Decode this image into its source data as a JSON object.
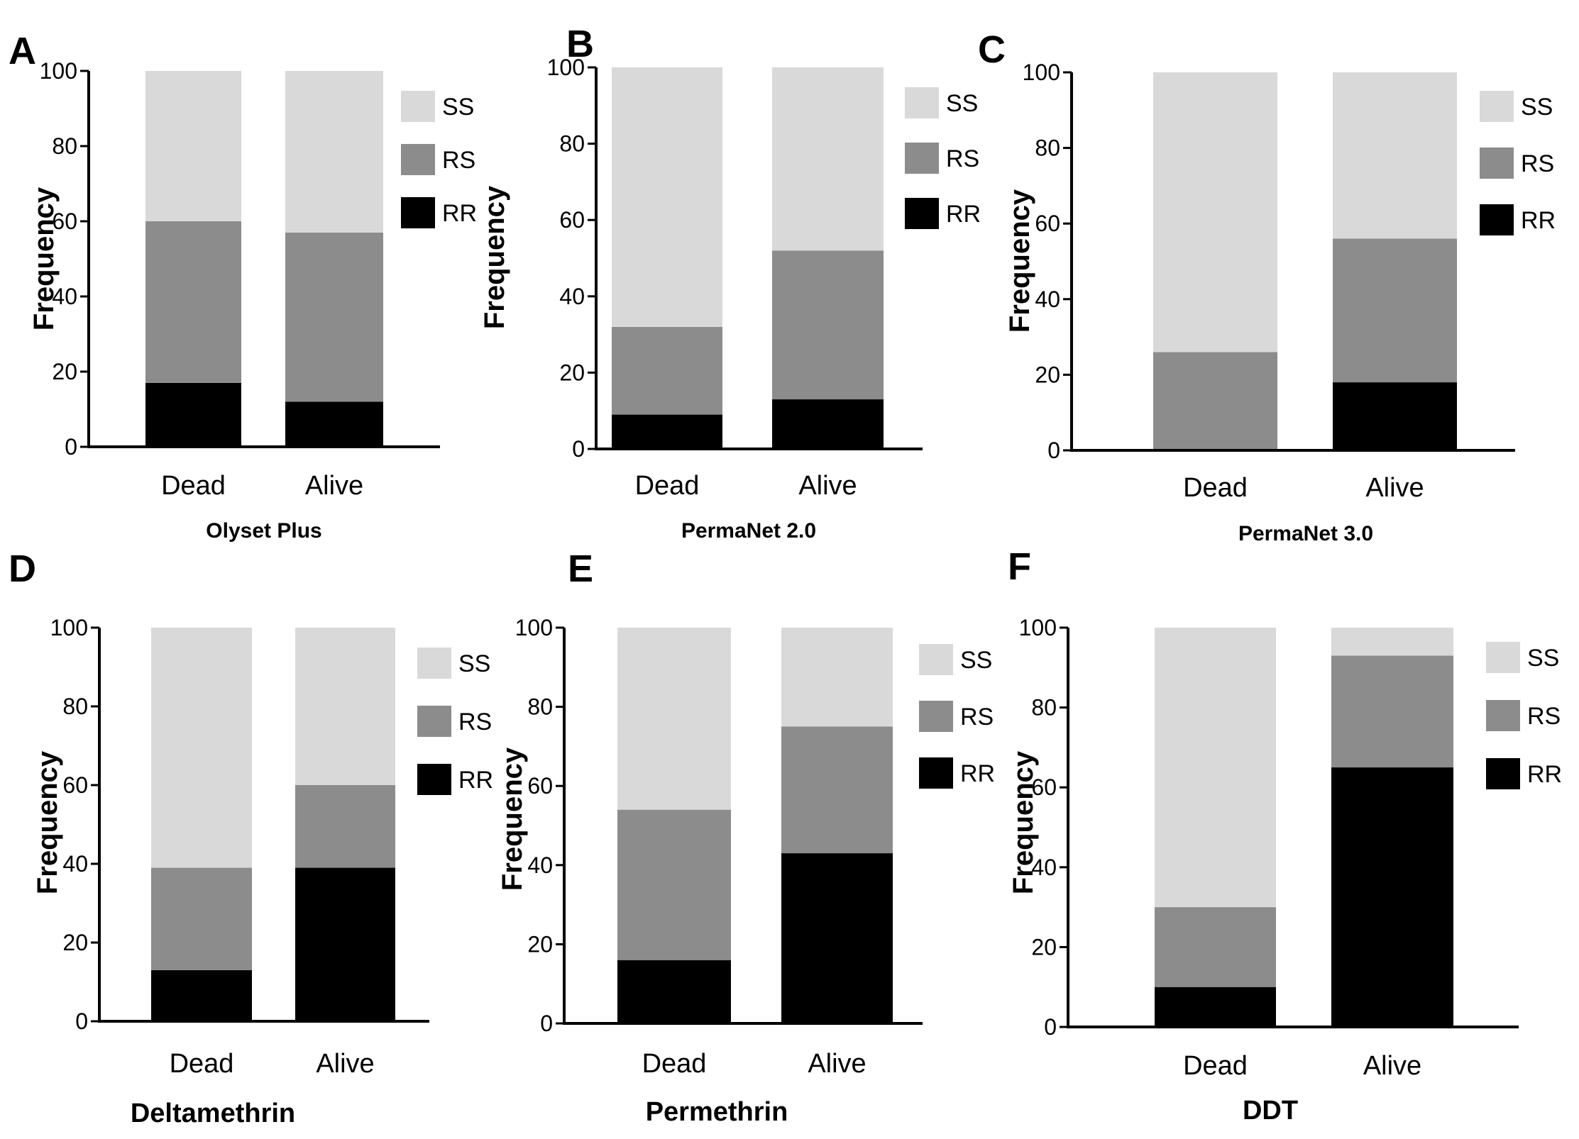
{
  "colors": {
    "SS": "#d9d9d9",
    "RS": "#8c8c8c",
    "RR": "#000000"
  },
  "chart_data": [
    {
      "panel": "A",
      "type": "bar",
      "stacked": true,
      "title": "Olyset Plus",
      "xlabel": "Olyset Plus",
      "ylabel": "Frequency",
      "categories": [
        "Dead",
        "Alive"
      ],
      "ylim": [
        0,
        100
      ],
      "yticks": [
        0,
        20,
        40,
        60,
        80,
        100
      ],
      "series": [
        {
          "name": "RR",
          "values": [
            17,
            12
          ]
        },
        {
          "name": "RS",
          "values": [
            43,
            45
          ]
        },
        {
          "name": "SS",
          "values": [
            40,
            43
          ]
        }
      ],
      "legend": [
        "SS",
        "RS",
        "RR"
      ]
    },
    {
      "panel": "B",
      "type": "bar",
      "stacked": true,
      "title": "PermaNet 2.0",
      "xlabel": "PermaNet 2.0",
      "ylabel": "Frequency",
      "categories": [
        "Dead",
        "Alive"
      ],
      "ylim": [
        0,
        100
      ],
      "yticks": [
        0,
        20,
        40,
        60,
        80,
        100
      ],
      "series": [
        {
          "name": "RR",
          "values": [
            9,
            13
          ]
        },
        {
          "name": "RS",
          "values": [
            23,
            39
          ]
        },
        {
          "name": "SS",
          "values": [
            68,
            48
          ]
        }
      ],
      "legend": [
        "SS",
        "RS",
        "RR"
      ]
    },
    {
      "panel": "C",
      "type": "bar",
      "stacked": true,
      "title": "PermaNet 3.0",
      "xlabel": "PermaNet 3.0",
      "ylabel": "Frequency",
      "categories": [
        "Dead",
        "Alive"
      ],
      "ylim": [
        0,
        100
      ],
      "yticks": [
        0,
        20,
        40,
        60,
        80,
        100
      ],
      "series": [
        {
          "name": "RR",
          "values": [
            0,
            18
          ]
        },
        {
          "name": "RS",
          "values": [
            26,
            38
          ]
        },
        {
          "name": "SS",
          "values": [
            74,
            44
          ]
        }
      ],
      "legend": [
        "SS",
        "RS",
        "RR"
      ]
    },
    {
      "panel": "D",
      "type": "bar",
      "stacked": true,
      "title": "Deltamethrin",
      "xlabel": "Deltamethrin",
      "ylabel": "Frequency",
      "categories": [
        "Dead",
        "Alive"
      ],
      "ylim": [
        0,
        100
      ],
      "yticks": [
        0,
        20,
        40,
        60,
        80,
        100
      ],
      "series": [
        {
          "name": "RR",
          "values": [
            13,
            39
          ]
        },
        {
          "name": "RS",
          "values": [
            26,
            21
          ]
        },
        {
          "name": "SS",
          "values": [
            61,
            40
          ]
        }
      ],
      "legend": [
        "SS",
        "RS",
        "RR"
      ]
    },
    {
      "panel": "E",
      "type": "bar",
      "stacked": true,
      "title": "Permethrin",
      "xlabel": "Permethrin",
      "ylabel": "Frequency",
      "categories": [
        "Dead",
        "Alive"
      ],
      "ylim": [
        0,
        100
      ],
      "yticks": [
        0,
        20,
        40,
        60,
        80,
        100
      ],
      "series": [
        {
          "name": "RR",
          "values": [
            16,
            43
          ]
        },
        {
          "name": "RS",
          "values": [
            38,
            32
          ]
        },
        {
          "name": "SS",
          "values": [
            46,
            25
          ]
        }
      ],
      "legend": [
        "SS",
        "RS",
        "RR"
      ]
    },
    {
      "panel": "F",
      "type": "bar",
      "stacked": true,
      "title": "DDT",
      "xlabel": "DDT",
      "ylabel": "Frequency",
      "categories": [
        "Dead",
        "Alive"
      ],
      "ylim": [
        0,
        100
      ],
      "yticks": [
        0,
        20,
        40,
        60,
        80,
        100
      ],
      "series": [
        {
          "name": "RR",
          "values": [
            10,
            65
          ]
        },
        {
          "name": "RS",
          "values": [
            20,
            28
          ]
        },
        {
          "name": "SS",
          "values": [
            70,
            7
          ]
        }
      ],
      "legend": [
        "SS",
        "RS",
        "RR"
      ]
    }
  ]
}
